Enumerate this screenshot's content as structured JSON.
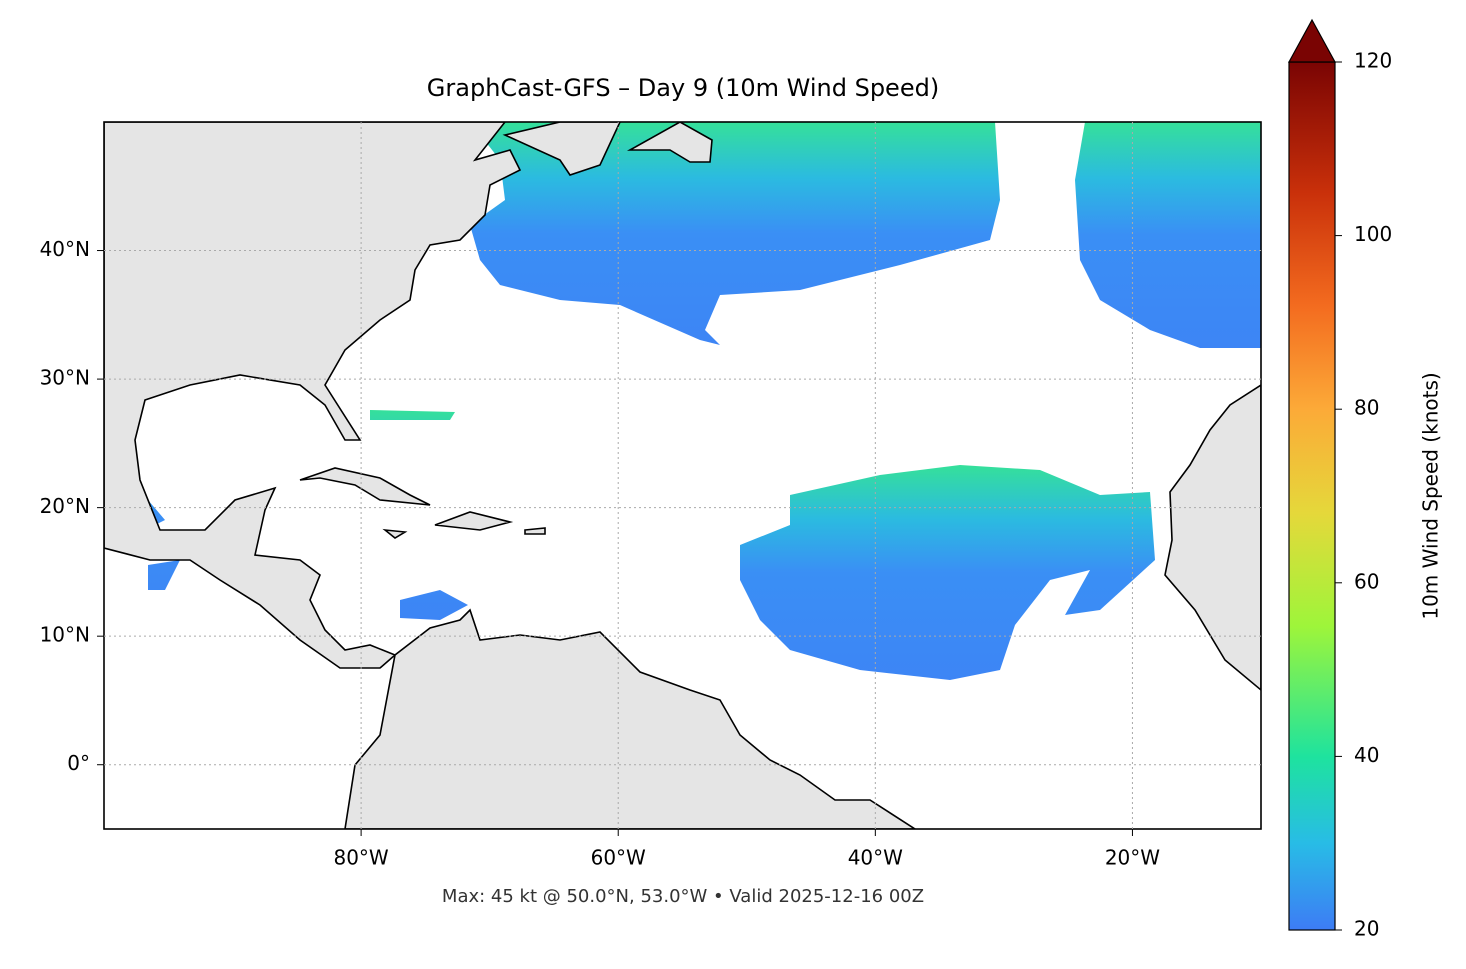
{
  "chart_data": {
    "type": "map",
    "title": "GraphCast-GFS – Day 9 (10m Wind Speed)",
    "footnote": "Max: 45 kt @ 50.0°N, 53.0°W • Valid 2025-12-16 00Z",
    "xlim": [
      -100,
      -10
    ],
    "ylim": [
      -5,
      50
    ],
    "xticks": [
      {
        "value": -80,
        "label": "80°W"
      },
      {
        "value": -60,
        "label": "60°W"
      },
      {
        "value": -40,
        "label": "40°W"
      },
      {
        "value": -20,
        "label": "20°W"
      }
    ],
    "yticks": [
      {
        "value": 0,
        "label": "0°"
      },
      {
        "value": 10,
        "label": "10°N"
      },
      {
        "value": 20,
        "label": "20°N"
      },
      {
        "value": 30,
        "label": "30°N"
      },
      {
        "value": 40,
        "label": "40°N"
      }
    ],
    "grid": true,
    "colorbar": {
      "label": "10m Wind Speed (knots)",
      "lim": [
        20,
        120
      ],
      "ticks": [
        20,
        40,
        60,
        80,
        100,
        120
      ]
    }
  }
}
